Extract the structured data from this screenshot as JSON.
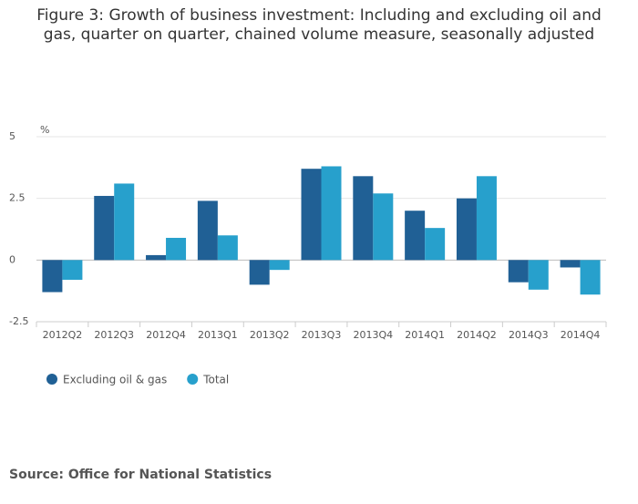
{
  "chart_data": {
    "type": "bar",
    "title": "Figure 3: Growth of business investment: Including and excluding oil and gas, quarter on quarter, chained volume measure, seasonally adjusted",
    "y_label": "%",
    "categories": [
      "2012Q2",
      "2012Q3",
      "2012Q4",
      "2013Q1",
      "2013Q2",
      "2013Q3",
      "2013Q4",
      "2014Q1",
      "2014Q2",
      "2014Q3",
      "2014Q4"
    ],
    "series": [
      {
        "name": "Excluding oil & gas",
        "color": "#206095",
        "values": [
          -1.3,
          2.6,
          0.2,
          2.4,
          -1.0,
          3.7,
          3.4,
          2.0,
          2.5,
          -0.9,
          -0.3
        ]
      },
      {
        "name": "Total",
        "color": "#27a0cc",
        "values": [
          -0.8,
          3.1,
          0.9,
          1.0,
          -0.4,
          3.8,
          2.7,
          1.3,
          3.4,
          -1.2,
          -1.4
        ]
      }
    ],
    "ylim": [
      -2.5,
      5
    ],
    "yticks": [
      -2.5,
      0,
      2.5,
      5
    ],
    "grid": true,
    "legend": "bottom-left",
    "source": "Source: Office for National Statistics"
  }
}
